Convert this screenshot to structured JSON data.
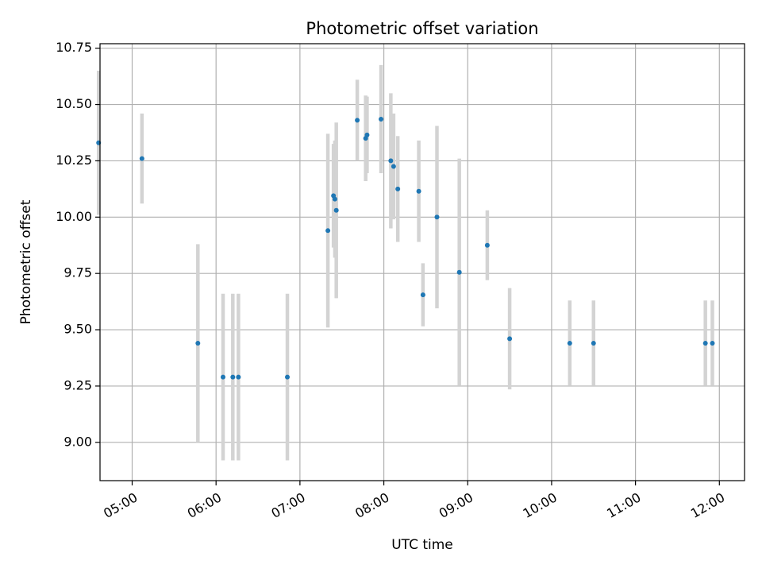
{
  "chart_data": {
    "type": "scatter",
    "title": "Photometric offset variation",
    "xlabel": "UTC time",
    "ylabel": "Photometric offset",
    "x_ticks": [
      "05:00",
      "06:00",
      "07:00",
      "08:00",
      "09:00",
      "10:00",
      "11:00",
      "12:00"
    ],
    "y_ticks": [
      "9.00",
      "9.25",
      "9.50",
      "9.75",
      "10.00",
      "10.25",
      "10.50",
      "10.75"
    ],
    "xlim": [
      "04:37",
      "12:18"
    ],
    "ylim": [
      8.83,
      10.77
    ],
    "grid": true,
    "x_tick_rotation": 30,
    "colors": {
      "points": "#1f77b4",
      "error_bars": "#d3d3d3",
      "grid": "#b0b0b0"
    },
    "series": [
      {
        "points": [
          {
            "x": "04:36",
            "y": 10.33,
            "err": 0.32
          },
          {
            "x": "05:07",
            "y": 10.26,
            "err": 0.2
          },
          {
            "x": "05:47",
            "y": 9.44,
            "err": 0.44
          },
          {
            "x": "06:05",
            "y": 9.29,
            "err": 0.37
          },
          {
            "x": "06:12",
            "y": 9.29,
            "err": 0.37
          },
          {
            "x": "06:16",
            "y": 9.29,
            "err": 0.37
          },
          {
            "x": "06:51",
            "y": 9.29,
            "err": 0.37
          },
          {
            "x": "07:20",
            "y": 9.94,
            "err": 0.43
          },
          {
            "x": "07:24",
            "y": 10.095,
            "err": 0.23
          },
          {
            "x": "07:25",
            "y": 10.08,
            "err": 0.26
          },
          {
            "x": "07:26",
            "y": 10.03,
            "err": 0.39
          },
          {
            "x": "07:41",
            "y": 10.43,
            "err": 0.18
          },
          {
            "x": "07:47",
            "y": 10.35,
            "err": 0.19
          },
          {
            "x": "07:48",
            "y": 10.365,
            "err": 0.17
          },
          {
            "x": "07:58",
            "y": 10.435,
            "err": 0.24
          },
          {
            "x": "08:05",
            "y": 10.25,
            "err": 0.3
          },
          {
            "x": "08:07",
            "y": 10.225,
            "err": 0.235
          },
          {
            "x": "08:10",
            "y": 10.125,
            "err": 0.235
          },
          {
            "x": "08:25",
            "y": 10.115,
            "err": 0.225
          },
          {
            "x": "08:28",
            "y": 9.655,
            "err": 0.14
          },
          {
            "x": "08:38",
            "y": 10.0,
            "err": 0.405
          },
          {
            "x": "08:54",
            "y": 9.755,
            "err": 0.505
          },
          {
            "x": "09:14",
            "y": 9.875,
            "err": 0.155
          },
          {
            "x": "09:30",
            "y": 9.46,
            "err": 0.225
          },
          {
            "x": "10:13",
            "y": 9.44,
            "err": 0.19
          },
          {
            "x": "10:30",
            "y": 9.44,
            "err": 0.19
          },
          {
            "x": "11:50",
            "y": 9.44,
            "err": 0.19
          },
          {
            "x": "11:55",
            "y": 9.44,
            "err": 0.19
          }
        ]
      }
    ]
  }
}
